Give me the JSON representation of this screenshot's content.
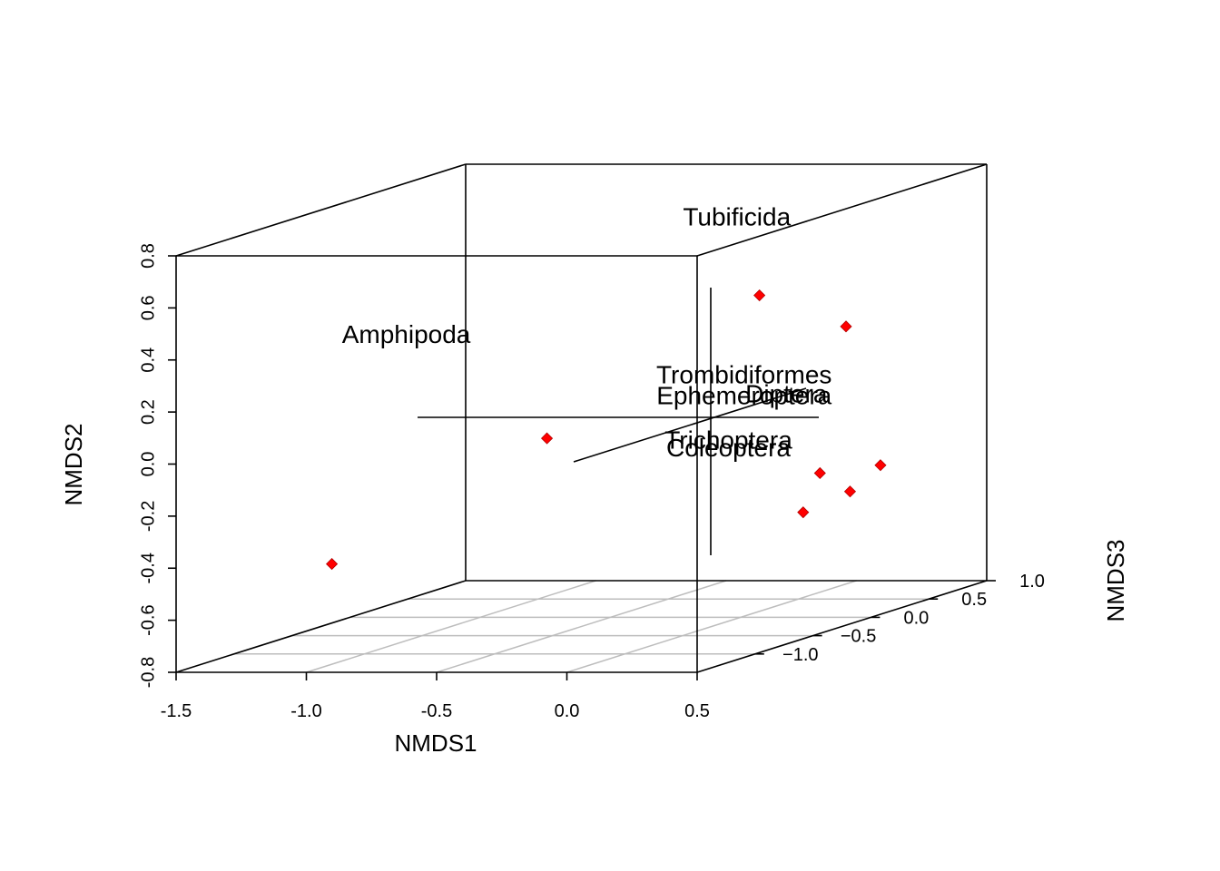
{
  "chart_data": {
    "type": "scatter3d",
    "title": "",
    "xlabel": "NMDS1",
    "ylabel": "NMDS2",
    "zlabel": "NMDS3",
    "xlim": [
      -1.5,
      0.5
    ],
    "ylim": [
      -0.8,
      0.8
    ],
    "zlim": [
      -1.5,
      1.0
    ],
    "x_ticks": [
      "-1.5",
      "-1.0",
      "-0.5",
      "0.0",
      "0.5"
    ],
    "y_ticks": [
      "-0.8",
      "-0.6",
      "-0.4",
      "-0.2",
      "0.0",
      "0.2",
      "0.4",
      "0.6",
      "0.8"
    ],
    "z_ticks": [
      "−1.0",
      "−0.5",
      "0.0",
      "0.5",
      "1.0"
    ],
    "grid": "floor",
    "point_color": "#ff0000",
    "points": [
      {
        "x": -1.08,
        "y": -0.44,
        "z": -1.1
      },
      {
        "x": -0.61,
        "y": -0.07,
        "z": -0.3
      },
      {
        "x": 0.05,
        "y": 0.43,
        "z": 0.05
      },
      {
        "x": 0.16,
        "y": 0.24,
        "z": 0.55
      },
      {
        "x": 0.26,
        "y": -0.26,
        "z": 0.1
      },
      {
        "x": 0.22,
        "y": -0.38,
        "z": 0.45
      },
      {
        "x": 0.27,
        "y": -0.3,
        "z": 0.6
      },
      {
        "x": 0.04,
        "y": -0.46,
        "z": 0.45
      }
    ],
    "species": [
      {
        "label": "Tubificida",
        "x": 0.03,
        "y": 0.72,
        "z": -0.1
      },
      {
        "label": "Amphipoda",
        "x": -0.95,
        "y": 0.36,
        "z": -0.75
      },
      {
        "label": "Trombidiformes",
        "x": 0.08,
        "y": 0.12,
        "z": -0.15
      },
      {
        "label": "Ephemeroptera",
        "x": 0.08,
        "y": 0.04,
        "z": -0.15
      },
      {
        "label": "Diptera",
        "x": 0.22,
        "y": 0.04,
        "z": -0.1
      },
      {
        "label": "Trichoptera",
        "x": 0.02,
        "y": -0.13,
        "z": -0.15
      },
      {
        "label": "Coleoptera",
        "x": 0.02,
        "y": -0.16,
        "z": -0.15
      }
    ]
  }
}
